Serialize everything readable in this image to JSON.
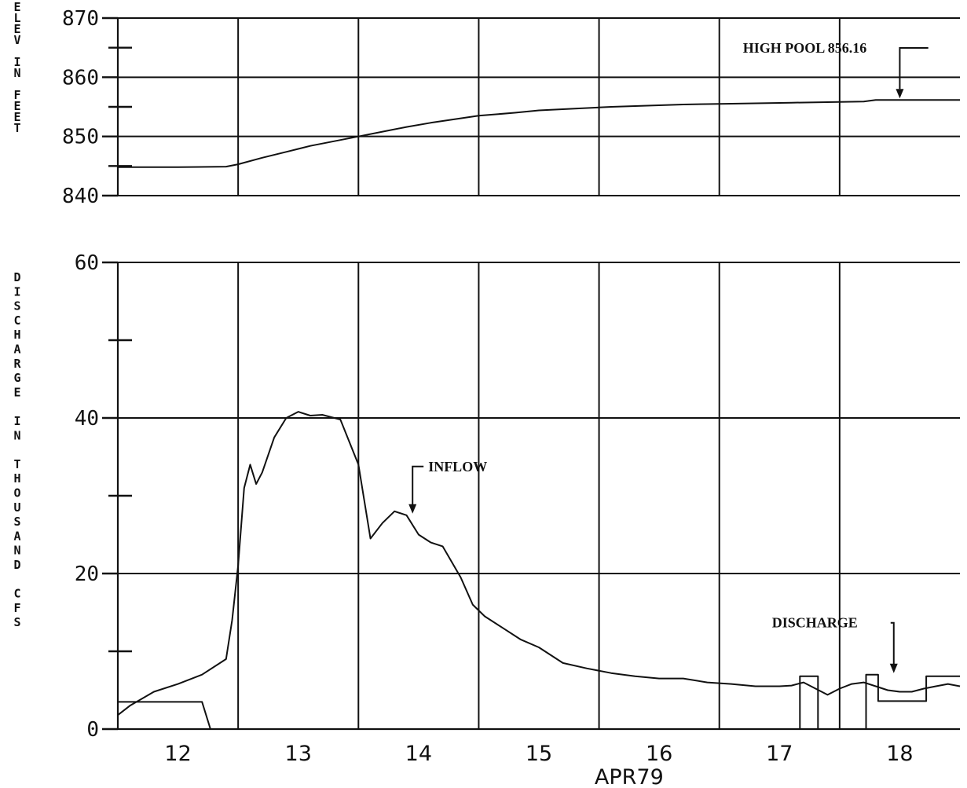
{
  "chart_data": [
    {
      "type": "line",
      "id": "elevation",
      "ylabel": "ELEV IN FEET",
      "ylim": [
        840,
        870
      ],
      "yticks": [
        840,
        850,
        860,
        870
      ],
      "ytick_labels": [
        "840",
        "850",
        "860",
        "870"
      ],
      "yminor": [
        845,
        855,
        865
      ],
      "xlim": [
        11.5,
        18.5
      ],
      "xgrid": [
        12.5,
        13.5,
        14.5,
        15.5,
        16.5,
        17.5
      ],
      "grid": true,
      "annotations": [
        {
          "text": "HIGH POOL 856.16",
          "x": 18.0,
          "y": 856.16
        }
      ],
      "series": [
        {
          "x": [
            11.5,
            12.0,
            12.4,
            12.5,
            12.7,
            12.9,
            13.1,
            13.3,
            13.5,
            13.7,
            13.9,
            14.1,
            14.3,
            14.5,
            14.8,
            15.0,
            15.3,
            15.6,
            15.9,
            16.2,
            16.5,
            16.8,
            17.1,
            17.4,
            17.7,
            17.8,
            18.0,
            18.2,
            18.5
          ],
          "y": [
            844.8,
            844.8,
            844.9,
            845.3,
            846.4,
            847.4,
            848.4,
            849.2,
            850.0,
            850.8,
            851.6,
            852.3,
            852.9,
            853.5,
            854.0,
            854.4,
            854.7,
            855.0,
            855.2,
            855.4,
            855.5,
            855.6,
            855.7,
            855.8,
            855.9,
            856.16,
            856.16,
            856.16,
            856.16
          ]
        }
      ]
    },
    {
      "type": "line",
      "id": "discharge",
      "ylabel": "DISCHARGE IN THOUSAND CFS",
      "xlabel": "APR79",
      "ylim": [
        0,
        60
      ],
      "yticks": [
        0,
        20,
        40,
        60
      ],
      "ytick_labels": [
        "0",
        "20",
        "40",
        "60"
      ],
      "yminor": [
        10,
        30,
        50
      ],
      "xlim": [
        11.5,
        18.5
      ],
      "xticks": [
        12,
        13,
        14,
        15,
        16,
        17,
        18
      ],
      "xtick_labels": [
        "12",
        "13",
        "14",
        "15",
        "16",
        "17",
        "18"
      ],
      "xgrid": [
        12.5,
        13.5,
        14.5,
        15.5,
        16.5,
        17.5
      ],
      "grid": true,
      "annotations": [
        {
          "text": "INFLOW",
          "x": 13.95,
          "y": 27.5
        },
        {
          "text": "DISCHARGE",
          "x": 17.95,
          "y": 7.0
        }
      ],
      "series": [
        {
          "name": "INFLOW",
          "x": [
            11.5,
            11.6,
            11.8,
            12.0,
            12.2,
            12.4,
            12.45,
            12.5,
            12.55,
            12.6,
            12.65,
            12.7,
            12.8,
            12.9,
            13.0,
            13.1,
            13.2,
            13.35,
            13.5,
            13.6,
            13.7,
            13.8,
            13.9,
            14.0,
            14.1,
            14.2,
            14.35,
            14.45,
            14.55,
            14.7,
            14.85,
            15.0,
            15.2,
            15.4,
            15.6,
            15.8,
            16.0,
            16.2,
            16.4,
            16.6,
            16.8,
            17.0,
            17.1,
            17.2,
            17.3,
            17.4,
            17.5,
            17.6,
            17.7,
            17.8,
            17.9,
            18.0,
            18.1,
            18.2,
            18.3,
            18.4,
            18.5
          ],
          "y": [
            1.8,
            3.0,
            4.8,
            5.8,
            7.0,
            9.0,
            14.0,
            21.0,
            31.0,
            34.0,
            31.5,
            33.0,
            37.5,
            40.0,
            40.8,
            40.3,
            40.4,
            39.8,
            34.0,
            24.5,
            26.5,
            28.0,
            27.5,
            25.0,
            24.0,
            23.5,
            19.5,
            16.0,
            14.5,
            13.0,
            11.5,
            10.5,
            8.5,
            7.8,
            7.2,
            6.8,
            6.5,
            6.5,
            6.0,
            5.8,
            5.5,
            5.5,
            5.6,
            6.0,
            5.2,
            4.4,
            5.2,
            5.8,
            6.0,
            5.5,
            5.0,
            4.8,
            4.8,
            5.2,
            5.5,
            5.8,
            5.5
          ]
        },
        {
          "name": "DISCHARGE",
          "x": [
            11.5,
            12.2,
            12.2,
            12.27,
            12.27,
            17.17,
            17.17,
            17.32,
            17.32,
            17.72,
            17.72,
            17.82,
            17.82,
            17.92,
            17.92,
            18.22,
            18.22,
            18.5
          ],
          "y": [
            3.5,
            3.5,
            3.5,
            0.0,
            0.0,
            0.0,
            6.8,
            6.8,
            0.0,
            0.0,
            7.0,
            7.0,
            3.6,
            3.6,
            3.6,
            3.6,
            6.8,
            6.8
          ]
        }
      ]
    }
  ]
}
